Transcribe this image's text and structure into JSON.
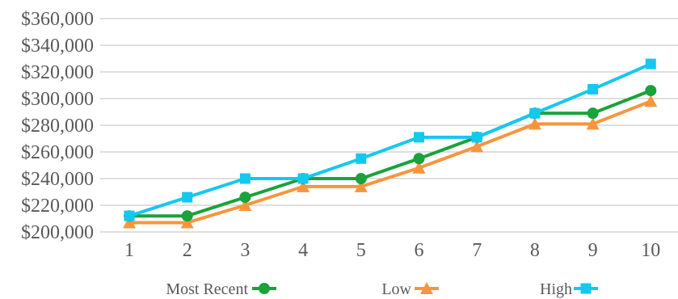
{
  "chart_data": {
    "type": "line",
    "categories": [
      "1",
      "2",
      "3",
      "4",
      "5",
      "6",
      "7",
      "8",
      "9",
      "10"
    ],
    "y_tick_labels": [
      "$200,000",
      "$220,000",
      "$240,000",
      "$260,000",
      "$280,000",
      "$300,000",
      "$320,000",
      "$340,000",
      "$360,000"
    ],
    "ylim": [
      200000,
      360000
    ],
    "y_step": 20000,
    "grid": true,
    "legend_position": "bottom",
    "series": [
      {
        "name": "Most Recent",
        "color": "#1aa23b",
        "marker": "circle",
        "values": [
          212000,
          212000,
          226000,
          240000,
          240000,
          255000,
          271000,
          289000,
          289000,
          306000
        ]
      },
      {
        "name": "Low",
        "color": "#f7953f",
        "marker": "triangle",
        "values": [
          207000,
          207000,
          220000,
          234000,
          234000,
          248000,
          264000,
          281000,
          281000,
          298000
        ]
      },
      {
        "name": "High",
        "color": "#14c8ef",
        "marker": "square",
        "values": [
          212000,
          226000,
          240000,
          240000,
          255000,
          271000,
          271000,
          289000,
          307000,
          326000
        ]
      }
    ]
  }
}
